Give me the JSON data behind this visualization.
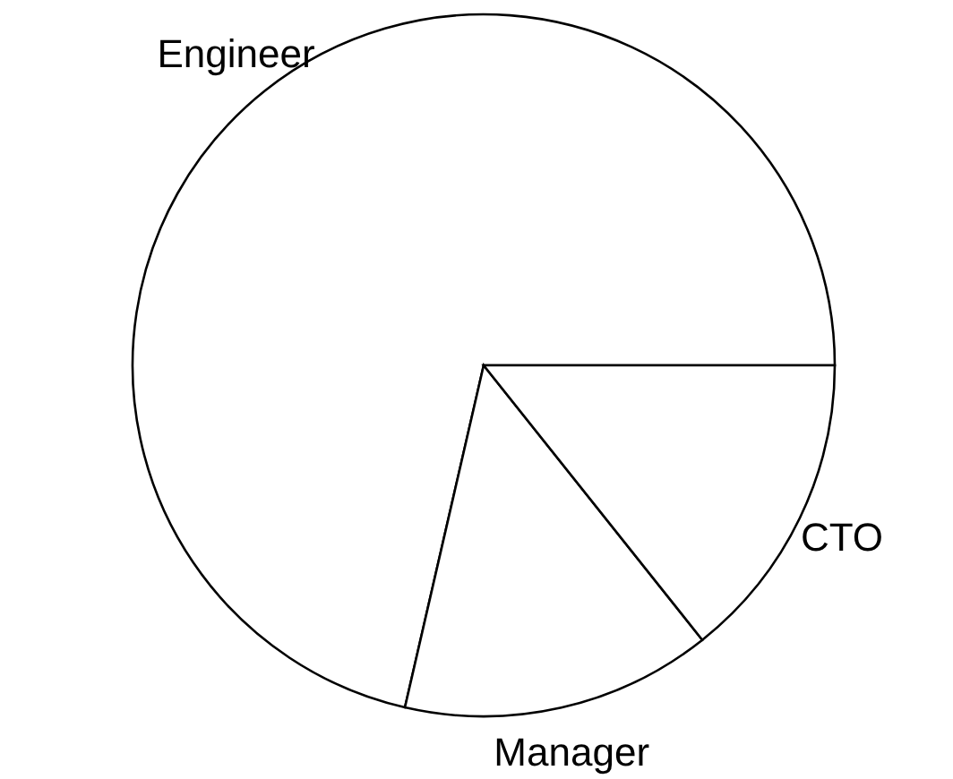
{
  "chart_data": {
    "type": "pie",
    "categories": [
      "Engineer",
      "Manager",
      "CTO"
    ],
    "values": [
      71.4,
      14.3,
      14.3
    ],
    "colors": [
      "#ffffff",
      "#ffffff",
      "#ffffff"
    ]
  }
}
